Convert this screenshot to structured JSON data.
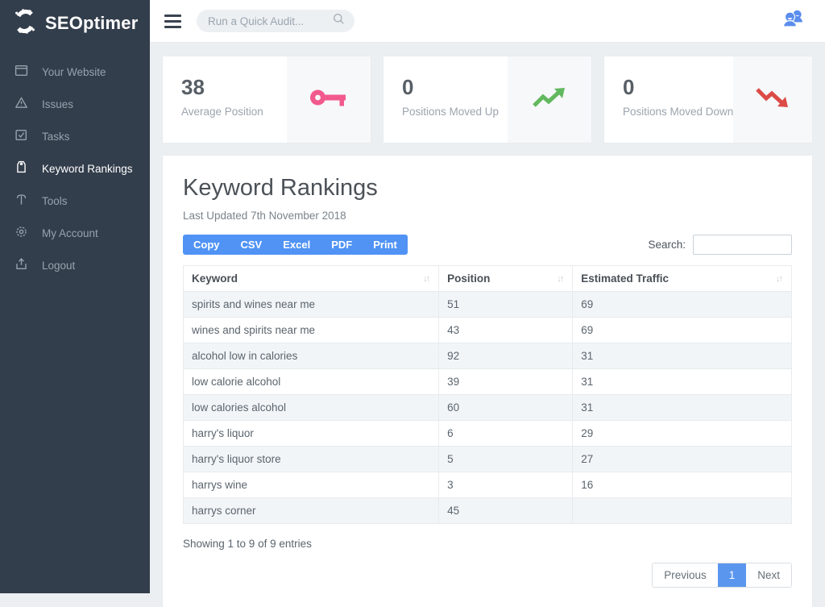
{
  "brand": {
    "name": "SEOptimer"
  },
  "sidebar": {
    "items": [
      {
        "label": "Your Website",
        "icon": "window-icon",
        "active": false
      },
      {
        "label": "Issues",
        "icon": "warning-icon",
        "active": false
      },
      {
        "label": "Tasks",
        "icon": "tasks-icon",
        "active": false
      },
      {
        "label": "Keyword Rankings",
        "icon": "tag-icon",
        "active": true
      },
      {
        "label": "Tools",
        "icon": "hammer-icon",
        "active": false
      },
      {
        "label": "My Account",
        "icon": "gear-icon",
        "active": false
      },
      {
        "label": "Logout",
        "icon": "logout-icon",
        "active": false
      }
    ]
  },
  "topbar": {
    "search_placeholder": "Run a Quick Audit..."
  },
  "stats": [
    {
      "value": "38",
      "label": "Average Position",
      "icon": "key-icon",
      "color": "#f2598c"
    },
    {
      "value": "0",
      "label": "Positions Moved Up",
      "icon": "trend-up-icon",
      "color": "#62b85e"
    },
    {
      "value": "0",
      "label": "Positions Moved Down",
      "icon": "trend-down-icon",
      "color": "#dc4b47"
    }
  ],
  "panel": {
    "title": "Keyword Rankings",
    "subtitle": "Last Updated 7th November 2018",
    "export_buttons": [
      "Copy",
      "CSV",
      "Excel",
      "PDF",
      "Print"
    ],
    "search_label": "Search:",
    "table": {
      "columns": [
        "Keyword",
        "Position",
        "Estimated Traffic"
      ],
      "rows": [
        [
          "spirits and wines near me",
          "51",
          "69"
        ],
        [
          "wines and spirits near me",
          "43",
          "69"
        ],
        [
          "alcohol low in calories",
          "92",
          "31"
        ],
        [
          "low calorie alcohol",
          "39",
          "31"
        ],
        [
          "low calories alcohol",
          "60",
          "31"
        ],
        [
          "harry's liquor",
          "6",
          "29"
        ],
        [
          "harry's liquor store",
          "5",
          "27"
        ],
        [
          "harrys wine",
          "3",
          "16"
        ],
        [
          "harrys corner",
          "45",
          ""
        ]
      ]
    },
    "footer": {
      "summary": "Showing 1 to 9 of 9 entries",
      "previous": "Previous",
      "page": "1",
      "next": "Next"
    }
  },
  "colors": {
    "sidebar_bg": "#333e4c",
    "accent_blue": "#5093f5",
    "active_page_blue": "#5a96ee",
    "key_pink": "#f2598c",
    "trend_green": "#62b85e",
    "trend_red": "#dc4b47",
    "users_icon_blue": "#5a8ded"
  }
}
